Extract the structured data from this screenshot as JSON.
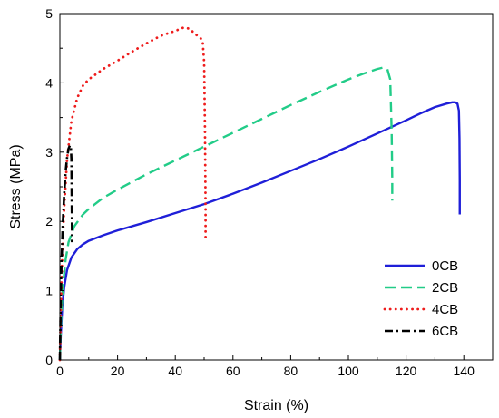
{
  "chart_data": {
    "type": "line",
    "title": "",
    "xlabel": "Strain (%)",
    "ylabel": "Stress (MPa)",
    "xlim": [
      0,
      150
    ],
    "ylim": [
      0,
      5
    ],
    "xticks": [
      0,
      20,
      40,
      60,
      80,
      100,
      120,
      140
    ],
    "yticks": [
      0,
      1,
      2,
      3,
      4,
      5
    ],
    "grid": false,
    "legend_position": "bottom-right",
    "series": [
      {
        "name": "0CB",
        "color": "#1f1fd8",
        "dash": "solid",
        "x": [
          0,
          0.3,
          0.8,
          1.5,
          2.5,
          4,
          6,
          8,
          10,
          15,
          20,
          30,
          40,
          50,
          60,
          70,
          80,
          90,
          100,
          110,
          120,
          125,
          130,
          134,
          136,
          137,
          137.8,
          138.3,
          138.5,
          138.6,
          138.6
        ],
        "y": [
          0,
          0.35,
          0.75,
          1.05,
          1.3,
          1.48,
          1.6,
          1.67,
          1.72,
          1.8,
          1.87,
          1.99,
          2.12,
          2.25,
          2.4,
          2.56,
          2.73,
          2.9,
          3.08,
          3.27,
          3.46,
          3.56,
          3.65,
          3.7,
          3.72,
          3.72,
          3.7,
          3.6,
          3.2,
          2.6,
          2.1
        ]
      },
      {
        "name": "2CB",
        "color": "#22cc88",
        "dash": "long-dash",
        "x": [
          0,
          0.3,
          1,
          2,
          3,
          5,
          8,
          10,
          15,
          20,
          30,
          40,
          50,
          60,
          70,
          80,
          90,
          100,
          105,
          110,
          112,
          113.5,
          114.5,
          115,
          115.2,
          115.2
        ],
        "y": [
          0,
          0.45,
          1.05,
          1.45,
          1.7,
          1.93,
          2.1,
          2.18,
          2.34,
          2.46,
          2.68,
          2.88,
          3.08,
          3.28,
          3.48,
          3.68,
          3.87,
          4.05,
          4.13,
          4.2,
          4.22,
          4.2,
          4.05,
          3.3,
          2.6,
          2.3
        ]
      },
      {
        "name": "4CB",
        "color": "#ee1c1c",
        "dash": "dotted",
        "x": [
          0,
          0.3,
          0.8,
          1.5,
          2.5,
          4,
          6,
          8,
          10,
          15,
          20,
          25,
          30,
          35,
          40,
          43,
          45,
          47,
          48.5,
          49.5,
          50,
          50.3,
          50.5,
          50.5
        ],
        "y": [
          0,
          0.7,
          1.5,
          2.2,
          2.9,
          3.45,
          3.78,
          3.96,
          4.05,
          4.2,
          4.32,
          4.45,
          4.57,
          4.68,
          4.75,
          4.8,
          4.78,
          4.7,
          4.66,
          4.6,
          4.3,
          3.3,
          2.2,
          1.7
        ]
      },
      {
        "name": "6CB",
        "color": "#000000",
        "dash": "dash-dot",
        "x": [
          0,
          0.2,
          0.5,
          1,
          1.5,
          2,
          2.5,
          3,
          3.5,
          3.8,
          4,
          4.1,
          4.2,
          4.2
        ],
        "y": [
          0,
          0.6,
          1.3,
          1.95,
          2.4,
          2.72,
          2.92,
          3.05,
          3.1,
          3.08,
          2.9,
          2.4,
          1.9,
          1.7
        ]
      }
    ]
  }
}
